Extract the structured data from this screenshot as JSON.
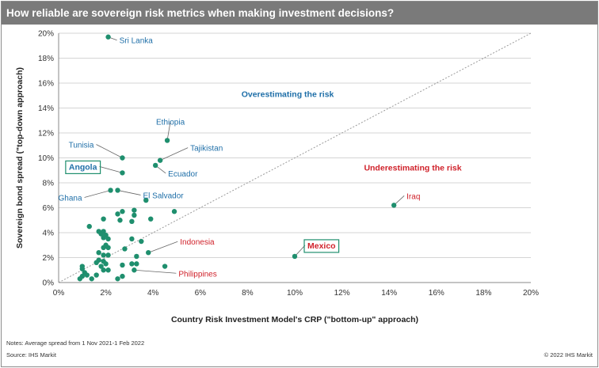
{
  "title": "How reliable are sovereign risk metrics when making investment decisions?",
  "notes": "Notes: Average spread from 1 Nov 2021-1 Feb 2022",
  "source": "Source: IHS Markit",
  "copyright": "© 2022 IHS Markit",
  "colors": {
    "title_bg": "#7a7a7a",
    "point": "#1f8f6e",
    "label_blue": "#1f6fa8",
    "label_red": "#d0222b",
    "grid": "#d4d4d4",
    "diagonal": "#9a9a9a"
  },
  "chart_data": {
    "type": "scatter",
    "xlabel": "Country Risk Investment Model's CRP (\"bottom-up\" approach)",
    "ylabel": "Sovereign bond spread (\"top-down approach)",
    "xlim": [
      0,
      20
    ],
    "ylim": [
      0,
      20
    ],
    "x_ticks": [
      0,
      2,
      4,
      6,
      8,
      10,
      12,
      14,
      16,
      18,
      20
    ],
    "y_ticks": [
      0,
      2,
      4,
      6,
      8,
      10,
      12,
      14,
      16,
      18,
      20
    ],
    "tick_format": "%",
    "grid": "horizontal",
    "diagonal_reference": "y = x",
    "region_labels": [
      {
        "text": "Overestimating the risk",
        "x": 9.7,
        "y": 14.9,
        "color": "#1f6fa8"
      },
      {
        "text": "Underestimating the risk",
        "x": 15.0,
        "y": 9.0,
        "color": "#d0222b"
      }
    ],
    "labeled_points": [
      {
        "name": "Sri Lanka",
        "x": 2.1,
        "y": 19.7,
        "color": "#1f6fa8",
        "boxed": false
      },
      {
        "name": "Ethiopia",
        "x": 4.6,
        "y": 11.4,
        "color": "#1f6fa8",
        "boxed": false
      },
      {
        "name": "Tajikistan",
        "x": 4.3,
        "y": 9.8,
        "color": "#1f6fa8",
        "boxed": false
      },
      {
        "name": "Tunisia",
        "x": 2.7,
        "y": 10.0,
        "color": "#1f6fa8",
        "boxed": false
      },
      {
        "name": "Ecuador",
        "x": 4.1,
        "y": 9.4,
        "color": "#1f6fa8",
        "boxed": false
      },
      {
        "name": "Angola",
        "x": 2.7,
        "y": 8.8,
        "color": "#1f6fa8",
        "boxed": true
      },
      {
        "name": "El Salvador",
        "x": 2.5,
        "y": 7.4,
        "color": "#1f6fa8",
        "boxed": false
      },
      {
        "name": "Ghana",
        "x": 2.2,
        "y": 7.4,
        "color": "#1f6fa8",
        "boxed": false
      },
      {
        "name": "Iraq",
        "x": 14.2,
        "y": 6.2,
        "color": "#d0222b",
        "boxed": false
      },
      {
        "name": "Indonesia",
        "x": 3.8,
        "y": 2.4,
        "color": "#d0222b",
        "boxed": false
      },
      {
        "name": "Mexico",
        "x": 10.0,
        "y": 2.1,
        "color": "#d0222b",
        "boxed": true
      },
      {
        "name": "Philippines",
        "x": 3.2,
        "y": 1.0,
        "color": "#d0222b",
        "boxed": false
      }
    ],
    "points": [
      [
        3.7,
        6.6
      ],
      [
        4.9,
        5.7
      ],
      [
        3.2,
        5.8
      ],
      [
        2.7,
        5.7
      ],
      [
        2.5,
        5.5
      ],
      [
        3.2,
        5.4
      ],
      [
        2.6,
        5.0
      ],
      [
        3.1,
        4.9
      ],
      [
        3.9,
        5.1
      ],
      [
        1.9,
        5.1
      ],
      [
        1.3,
        4.5
      ],
      [
        1.7,
        4.1
      ],
      [
        1.9,
        4.1
      ],
      [
        1.8,
        3.9
      ],
      [
        2.0,
        3.8
      ],
      [
        1.9,
        3.6
      ],
      [
        2.1,
        3.5
      ],
      [
        3.1,
        3.5
      ],
      [
        3.5,
        3.3
      ],
      [
        2.0,
        3.0
      ],
      [
        1.9,
        2.8
      ],
      [
        2.1,
        2.8
      ],
      [
        2.8,
        2.7
      ],
      [
        1.7,
        2.4
      ],
      [
        1.9,
        2.2
      ],
      [
        2.1,
        2.2
      ],
      [
        3.3,
        2.1
      ],
      [
        1.7,
        1.8
      ],
      [
        1.9,
        1.7
      ],
      [
        2.0,
        1.5
      ],
      [
        1.6,
        1.6
      ],
      [
        1.8,
        1.3
      ],
      [
        2.7,
        1.4
      ],
      [
        3.1,
        1.5
      ],
      [
        3.3,
        1.5
      ],
      [
        4.5,
        1.3
      ],
      [
        1.0,
        1.3
      ],
      [
        1.0,
        1.1
      ],
      [
        1.1,
        0.8
      ],
      [
        1.2,
        0.6
      ],
      [
        1.0,
        0.5
      ],
      [
        0.9,
        0.3
      ],
      [
        1.4,
        0.3
      ],
      [
        1.6,
        0.6
      ],
      [
        1.9,
        1.0
      ],
      [
        2.1,
        1.0
      ],
      [
        2.5,
        0.3
      ],
      [
        2.7,
        0.5
      ]
    ]
  }
}
